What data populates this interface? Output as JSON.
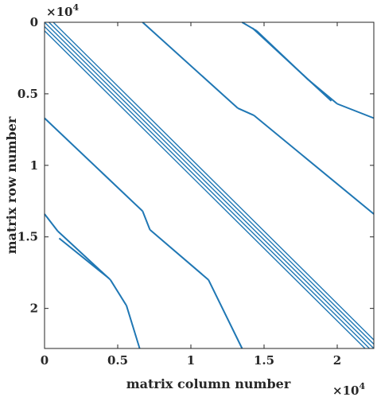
{
  "chart_data": {
    "type": "scatter",
    "subtype": "sparsity-pattern",
    "title": "",
    "xlabel": "matrix column number",
    "ylabel": "matrix row number",
    "x_multiplier_label": "×10",
    "x_multiplier_exp": "4",
    "y_multiplier_label": "×10",
    "y_multiplier_exp": "4",
    "xlim": [
      0,
      22500
    ],
    "ylim": [
      0,
      22800
    ],
    "y_reversed": true,
    "x_ticks": [
      {
        "value": 0,
        "label": "0"
      },
      {
        "value": 5000,
        "label": "0.5"
      },
      {
        "value": 10000,
        "label": "1"
      },
      {
        "value": 15000,
        "label": "1.5"
      },
      {
        "value": 20000,
        "label": "2"
      }
    ],
    "y_ticks": [
      {
        "value": 0,
        "label": "0"
      },
      {
        "value": 5000,
        "label": "0.5"
      },
      {
        "value": 10000,
        "label": "1"
      },
      {
        "value": 15000,
        "label": "1.5"
      },
      {
        "value": 20000,
        "label": "2"
      }
    ],
    "grid": false,
    "legend": "none",
    "marker_color": "#1f77b4",
    "series": [
      {
        "band": "main-diagonal",
        "segments": [
          [
            [
              0,
              0
            ],
            [
              22500,
              22800
            ]
          ],
          [
            [
              300,
              0
            ],
            [
              22500,
              22500
            ]
          ],
          [
            [
              0,
              300
            ],
            [
              22200,
              22800
            ]
          ],
          [
            [
              600,
              0
            ],
            [
              22500,
              22200
            ]
          ],
          [
            [
              0,
              600
            ],
            [
              21900,
              22800
            ]
          ]
        ]
      },
      {
        "band": "upper-1",
        "segments": [
          [
            [
              6700,
              0
            ],
            [
              13200,
              6000
            ]
          ],
          [
            [
              13200,
              6000
            ],
            [
              14300,
              6500
            ]
          ],
          [
            [
              14300,
              6500
            ],
            [
              22500,
              13400
            ]
          ]
        ]
      },
      {
        "band": "upper-2",
        "segments": [
          [
            [
              13500,
              0
            ],
            [
              14500,
              600
            ]
          ],
          [
            [
              14500,
              600
            ],
            [
              18000,
              4000
            ]
          ],
          [
            [
              18000,
              4000
            ],
            [
              20000,
              5700
            ]
          ],
          [
            [
              20000,
              5700
            ],
            [
              22500,
              6700
            ]
          ],
          [
            [
              14200,
              400
            ],
            [
              19600,
              5500
            ]
          ]
        ]
      },
      {
        "band": "lower-1",
        "segments": [
          [
            [
              0,
              6700
            ],
            [
              6700,
              13200
            ]
          ],
          [
            [
              6700,
              13200
            ],
            [
              7200,
              14500
            ]
          ],
          [
            [
              7200,
              14500
            ],
            [
              11200,
              18000
            ]
          ],
          [
            [
              11200,
              18000
            ],
            [
              13500,
              22800
            ]
          ]
        ]
      },
      {
        "band": "lower-2",
        "segments": [
          [
            [
              0,
              13400
            ],
            [
              900,
              14600
            ]
          ],
          [
            [
              900,
              14600
            ],
            [
              4500,
              18000
            ]
          ],
          [
            [
              4500,
              18000
            ],
            [
              5600,
              19800
            ]
          ],
          [
            [
              5600,
              19800
            ],
            [
              6500,
              22800
            ]
          ],
          [
            [
              1000,
              15100
            ],
            [
              4400,
              17900
            ]
          ]
        ]
      }
    ]
  }
}
